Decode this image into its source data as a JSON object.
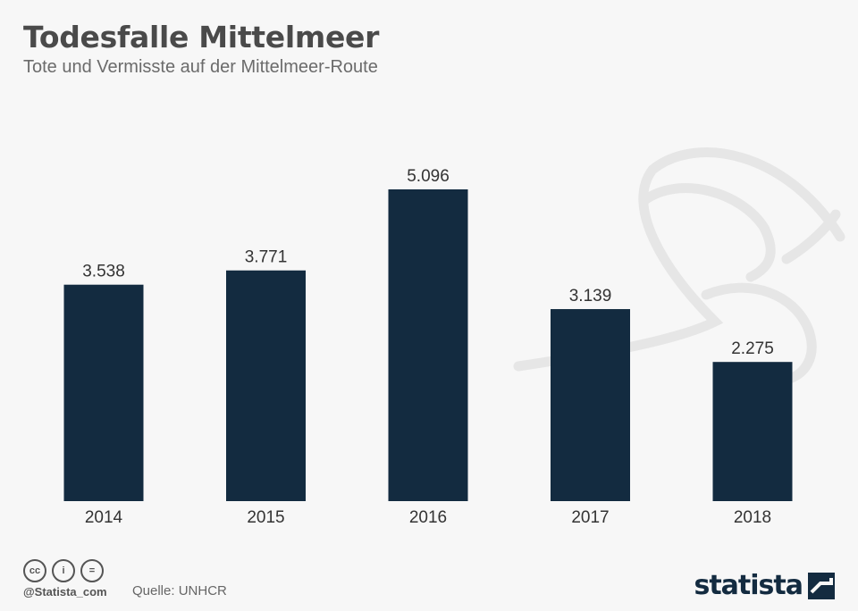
{
  "header": {
    "title": "Todesfalle Mittelmeer",
    "subtitle": "Tote und Vermisste auf der Mittelmeer-Route"
  },
  "chart_data": {
    "type": "bar",
    "title": "Todesfalle Mittelmeer",
    "subtitle": "Tote und Vermisste auf der Mittelmeer-Route",
    "categories": [
      "2014",
      "2015",
      "2016",
      "2017",
      "2018"
    ],
    "values": [
      3538,
      3771,
      5096,
      3139,
      2275
    ],
    "value_labels": [
      "3.538",
      "3.771",
      "5.096",
      "3.139",
      "2.275"
    ],
    "xlabel": "",
    "ylabel": "",
    "ylim": [
      0,
      5500
    ],
    "grid": false,
    "bar_color": "#132b40"
  },
  "footer": {
    "license_icons": [
      "cc-icon",
      "by-icon",
      "nd-icon"
    ],
    "license_text": [
      "cc",
      "i",
      "="
    ],
    "handle": "@Statista_com",
    "source": "Quelle: UNHCR",
    "brand": "statista"
  },
  "colors": {
    "background": "#f7f7f7",
    "bar": "#132b40",
    "text": "#333333",
    "watermark": "#e6e6e6"
  }
}
